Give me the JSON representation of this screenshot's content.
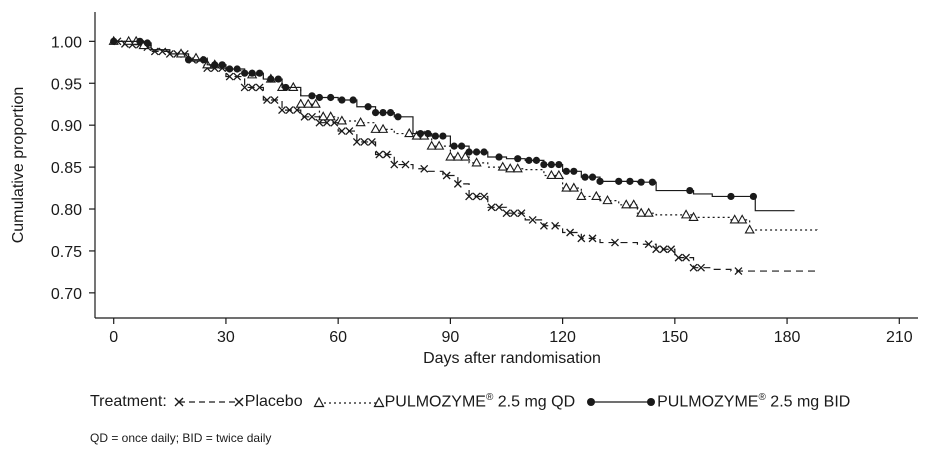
{
  "legend": {
    "title": "Treatment:",
    "items": [
      {
        "label": "Placebo",
        "marker": "x",
        "dash": "dashed"
      },
      {
        "label_main": "PULMOZYME",
        "label_sup": "®",
        "label_tail": " 2.5 mg QD",
        "marker": "triangle",
        "dash": "dotted"
      },
      {
        "label_main": "PULMOZYME",
        "label_sup": "®",
        "label_tail": " 2.5 mg BID",
        "marker": "dot",
        "dash": "solid"
      }
    ]
  },
  "footnote": "QD = once daily; BID = twice daily",
  "chart_data": {
    "type": "line",
    "xlabel": "Days after randomisation",
    "ylabel": "Cumulative proportion",
    "xlim": [
      -5,
      215
    ],
    "ylim": [
      0.67,
      1.035
    ],
    "xticks": [
      0,
      30,
      60,
      90,
      120,
      150,
      180,
      210
    ],
    "yticks": [
      0.7,
      0.75,
      0.8,
      0.85,
      0.9,
      0.95,
      1.0
    ],
    "ytick_labels": [
      "0.70",
      "0.75",
      "0.80",
      "0.85",
      "0.90",
      "0.95",
      "1.00"
    ],
    "grid": false,
    "series": [
      {
        "name": "Placebo",
        "color": "#1a1a1a",
        "line": "dashed",
        "marker": "x",
        "points": [
          [
            0,
            1.0
          ],
          [
            2,
            0.997
          ],
          [
            5,
            0.996
          ],
          [
            8,
            0.993
          ],
          [
            10,
            0.988
          ],
          [
            15,
            0.985
          ],
          [
            20,
            0.978
          ],
          [
            25,
            0.968
          ],
          [
            30,
            0.958
          ],
          [
            35,
            0.945
          ],
          [
            40,
            0.93
          ],
          [
            45,
            0.918
          ],
          [
            50,
            0.91
          ],
          [
            55,
            0.903
          ],
          [
            60,
            0.893
          ],
          [
            65,
            0.88
          ],
          [
            70,
            0.865
          ],
          [
            75,
            0.853
          ],
          [
            80,
            0.848
          ],
          [
            84,
            0.845
          ],
          [
            88,
            0.84
          ],
          [
            92,
            0.83
          ],
          [
            95,
            0.815
          ],
          [
            100,
            0.802
          ],
          [
            105,
            0.795
          ],
          [
            110,
            0.787
          ],
          [
            115,
            0.78
          ],
          [
            120,
            0.772
          ],
          [
            125,
            0.765
          ],
          [
            130,
            0.76
          ],
          [
            140,
            0.758
          ],
          [
            145,
            0.752
          ],
          [
            150,
            0.742
          ],
          [
            155,
            0.73
          ],
          [
            160,
            0.728
          ],
          [
            165,
            0.726
          ],
          [
            188,
            0.725
          ]
        ],
        "x_markers": [
          1,
          3,
          5,
          7,
          9,
          11,
          13,
          15,
          17,
          19,
          21,
          23,
          25,
          27,
          29,
          31,
          33,
          35,
          37,
          39,
          41,
          43,
          45,
          47,
          49,
          51,
          53,
          55,
          57,
          59,
          61,
          63,
          65,
          67,
          69,
          71,
          73,
          75,
          78,
          83,
          89,
          92,
          95,
          97,
          99,
          101,
          103,
          105,
          107,
          109,
          112,
          115,
          118,
          122,
          125,
          128,
          134,
          143,
          145,
          147,
          149,
          151,
          153,
          155,
          157,
          167
        ]
      },
      {
        "name": "PULMOZYME® 2.5 mg QD",
        "color": "#1a1a1a",
        "line": "dotted",
        "marker": "triangle",
        "points": [
          [
            0,
            1.0
          ],
          [
            5,
            1.0
          ],
          [
            8,
            0.995
          ],
          [
            10,
            0.99
          ],
          [
            15,
            0.985
          ],
          [
            20,
            0.98
          ],
          [
            25,
            0.972
          ],
          [
            30,
            0.965
          ],
          [
            35,
            0.96
          ],
          [
            40,
            0.955
          ],
          [
            45,
            0.945
          ],
          [
            50,
            0.925
          ],
          [
            55,
            0.91
          ],
          [
            60,
            0.905
          ],
          [
            65,
            0.903
          ],
          [
            70,
            0.895
          ],
          [
            75,
            0.89
          ],
          [
            80,
            0.887
          ],
          [
            85,
            0.875
          ],
          [
            90,
            0.862
          ],
          [
            95,
            0.855
          ],
          [
            100,
            0.85
          ],
          [
            105,
            0.848
          ],
          [
            110,
            0.847
          ],
          [
            115,
            0.84
          ],
          [
            120,
            0.825
          ],
          [
            125,
            0.815
          ],
          [
            130,
            0.81
          ],
          [
            135,
            0.805
          ],
          [
            140,
            0.795
          ],
          [
            145,
            0.793
          ],
          [
            150,
            0.793
          ],
          [
            155,
            0.79
          ],
          [
            160,
            0.79
          ],
          [
            165,
            0.787
          ],
          [
            170,
            0.775
          ],
          [
            188,
            0.774
          ]
        ],
        "x_markers": [
          0,
          4,
          6,
          8,
          18,
          22,
          25,
          27,
          37,
          42,
          45,
          48,
          50,
          52,
          54,
          56,
          58,
          61,
          66,
          70,
          72,
          79,
          81,
          83,
          85,
          87,
          90,
          92,
          94,
          97,
          104,
          106,
          108,
          117,
          119,
          121,
          123,
          125,
          129,
          132,
          137,
          139,
          141,
          143,
          153,
          155,
          166,
          168,
          170
        ]
      },
      {
        "name": "PULMOZYME® 2.5 mg BID",
        "color": "#1a1a1a",
        "line": "solid",
        "marker": "dot",
        "points": [
          [
            0,
            1.0
          ],
          [
            5,
            1.0
          ],
          [
            8,
            0.998
          ],
          [
            10,
            0.99
          ],
          [
            15,
            0.985
          ],
          [
            20,
            0.978
          ],
          [
            25,
            0.972
          ],
          [
            30,
            0.967
          ],
          [
            35,
            0.962
          ],
          [
            40,
            0.955
          ],
          [
            45,
            0.945
          ],
          [
            50,
            0.935
          ],
          [
            55,
            0.933
          ],
          [
            60,
            0.93
          ],
          [
            65,
            0.922
          ],
          [
            70,
            0.915
          ],
          [
            75,
            0.91
          ],
          [
            80,
            0.89
          ],
          [
            85,
            0.887
          ],
          [
            90,
            0.875
          ],
          [
            95,
            0.868
          ],
          [
            100,
            0.862
          ],
          [
            105,
            0.86
          ],
          [
            110,
            0.858
          ],
          [
            115,
            0.853
          ],
          [
            120,
            0.845
          ],
          [
            125,
            0.838
          ],
          [
            130,
            0.833
          ],
          [
            135,
            0.833
          ],
          [
            140,
            0.832
          ],
          [
            145,
            0.822
          ],
          [
            150,
            0.822
          ],
          [
            155,
            0.818
          ],
          [
            160,
            0.815
          ],
          [
            165,
            0.815
          ],
          [
            171,
            0.815
          ],
          [
            171.5,
            0.798
          ],
          [
            182,
            0.798
          ]
        ],
        "x_markers": [
          0,
          7,
          9,
          20,
          24,
          27,
          29,
          31,
          33,
          35,
          37,
          39,
          42,
          44,
          46,
          53,
          55,
          58,
          61,
          64,
          68,
          70,
          72,
          74,
          76,
          82,
          84,
          86,
          88,
          91,
          93,
          95,
          97,
          99,
          103,
          108,
          111,
          113,
          115,
          117,
          119,
          121,
          123,
          126,
          128,
          130,
          135,
          138,
          141,
          144,
          154,
          165,
          171
        ]
      }
    ]
  }
}
